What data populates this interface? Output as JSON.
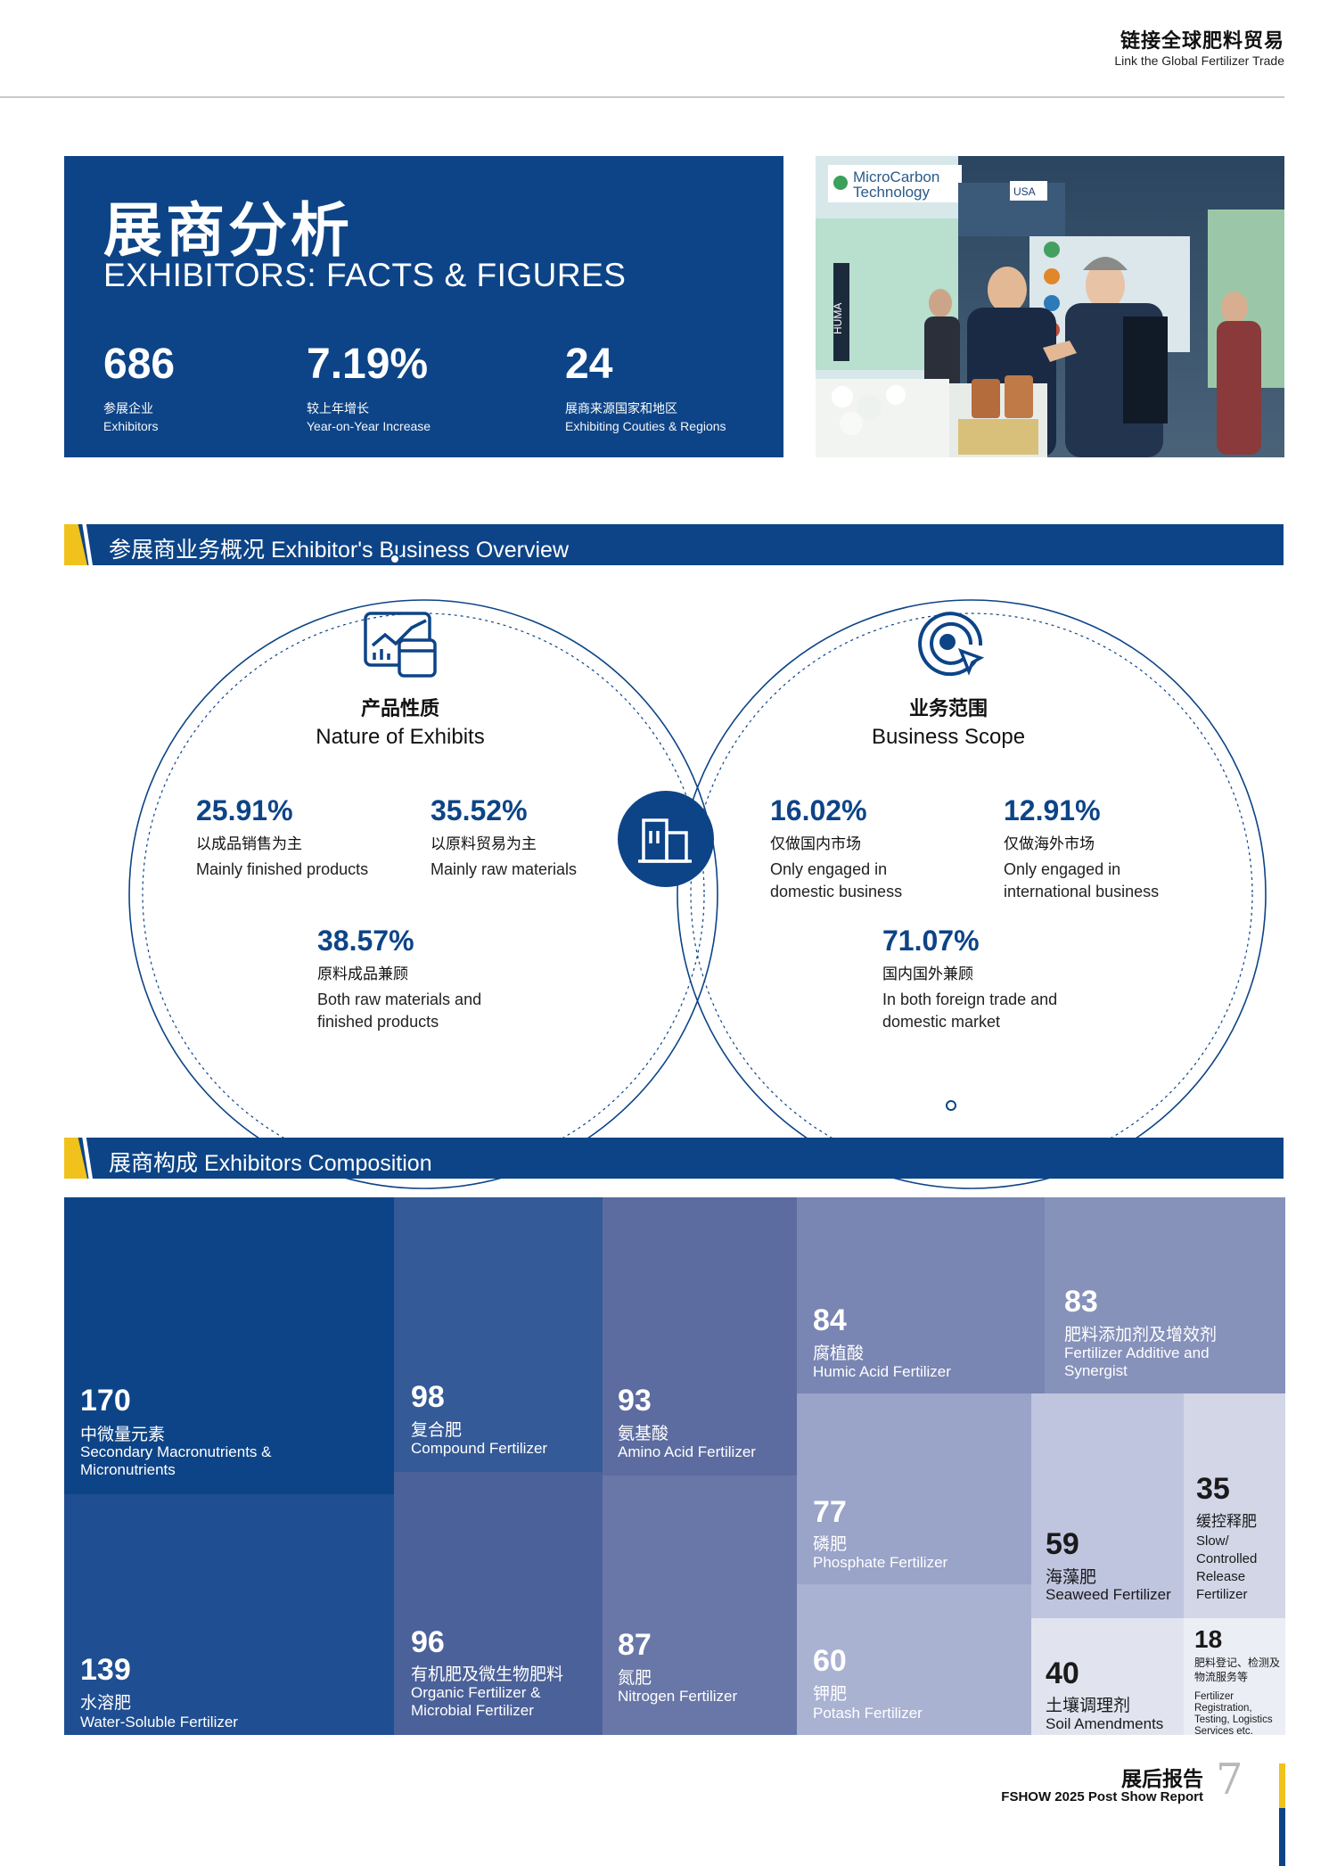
{
  "header": {
    "title_cn": "链接全球肥料贸易",
    "title_en": "Link the Global Fertilizer Trade"
  },
  "hero": {
    "title_cn": "展商分析",
    "title_en": "EXHIBITORS: FACTS & FIGURES",
    "stats": [
      {
        "value": "686",
        "label_cn": "参展企业",
        "label_en": "Exhibitors"
      },
      {
        "value": "7.19%",
        "label_cn": "较上年增长",
        "label_en": "Year-on-Year Increase"
      },
      {
        "value": "24",
        "label_cn": "展商来源国家和地区",
        "label_en": "Exhibiting Couties & Regions"
      }
    ]
  },
  "photo": {
    "sign_line1": "MicroCarbon",
    "sign_line2": "Technology",
    "booth_tag": "HUMA",
    "flag_tag": "USA"
  },
  "section1": {
    "label": "参展商业务概况 Exhibitor's Business Overview",
    "left": {
      "title_cn": "产品性质",
      "title_en": "Nature of Exhibits",
      "icon": "chart-icon",
      "stats": [
        {
          "pct": "25.91%",
          "cn": "以成品销售为主",
          "en": "Mainly finished products"
        },
        {
          "pct": "35.52%",
          "cn": "以原料贸易为主",
          "en": "Mainly raw materials"
        },
        {
          "pct": "38.57%",
          "cn": "原料成品兼顾",
          "en": "Both raw materials and finished products"
        }
      ]
    },
    "right": {
      "title_cn": "业务范围",
      "title_en": "Business Scope",
      "icon": "target-icon",
      "stats": [
        {
          "pct": "16.02%",
          "cn": "仅做国内市场",
          "en": "Only engaged in domestic business"
        },
        {
          "pct": "12.91%",
          "cn": "仅做海外市场",
          "en": "Only engaged in international business"
        },
        {
          "pct": "71.07%",
          "cn": "国内国外兼顾",
          "en": "In both foreign trade and domestic market"
        }
      ]
    },
    "center_icon": "building-icon"
  },
  "section2": {
    "label": "展商构成 Exhibitors Composition",
    "cells": [
      {
        "n": "170",
        "cn": "中微量元素",
        "en": "Secondary Macronutrients & Micronutrients",
        "color": "#0d4487"
      },
      {
        "n": "139",
        "cn": "水溶肥",
        "en": "Water-Soluble Fertilizer",
        "color": "#1f4f92"
      },
      {
        "n": "98",
        "cn": "复合肥",
        "en": "Compound Fertilizer",
        "color": "#345a97"
      },
      {
        "n": "96",
        "cn": "有机肥及微生物肥料",
        "en": "Organic Fertilizer & Microbial Fertilizer",
        "color": "#4b6199"
      },
      {
        "n": "93",
        "cn": "氨基酸",
        "en": "Amino Acid Fertilizer",
        "color": "#5c6ca0"
      },
      {
        "n": "87",
        "cn": "氮肥",
        "en": "Nitrogen Fertilizer",
        "color": "#6977a8"
      },
      {
        "n": "84",
        "cn": "腐植酸",
        "en": "Humic Acid Fertilizer",
        "color": "#7985b2"
      },
      {
        "n": "83",
        "cn": "肥料添加剂及增效剂",
        "en": "Fertilizer Additive and Synergist",
        "color": "#8792bb"
      },
      {
        "n": "77",
        "cn": "磷肥",
        "en": "Phosphate Fertilizer",
        "color": "#9aa3c8"
      },
      {
        "n": "60",
        "cn": "钾肥",
        "en": "Potash Fertilizer",
        "color": "#aab2d2"
      },
      {
        "n": "59",
        "cn": "海藻肥",
        "en": "Seaweed Fertilizer",
        "color": "#c0c5df"
      },
      {
        "n": "35",
        "cn": "缓控释肥",
        "en": "Slow/ Controlled Release Fertilizer",
        "color": "#d2d6e7"
      },
      {
        "n": "40",
        "cn": "土壤调理剂",
        "en": "Soil Amendments",
        "color": "#e1e4ef"
      },
      {
        "n": "18",
        "cn": "肥料登记、检测及物流服务等",
        "en": "Fertilizer Registration, Testing, Logistics Services etc.",
        "color": "#eceef5"
      }
    ]
  },
  "footer": {
    "title_cn": "展后报告",
    "title_en": "FSHOW 2025 Post Show Report",
    "page": "7"
  }
}
